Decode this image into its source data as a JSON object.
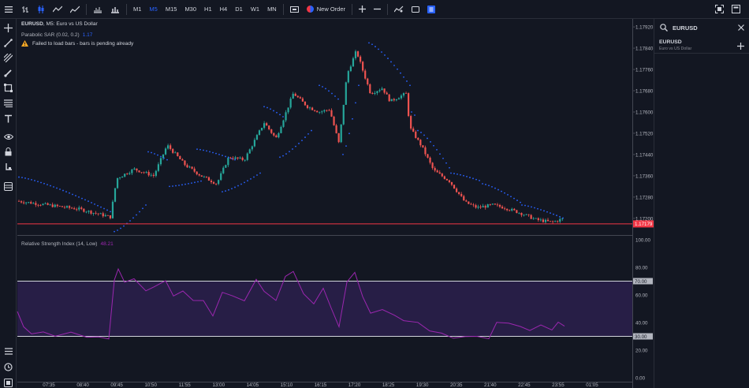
{
  "top_toolbar": {
    "timeframes": [
      "M1",
      "M5",
      "M15",
      "M30",
      "H1",
      "H4",
      "D1",
      "W1",
      "MN"
    ],
    "active_timeframe": "M5",
    "new_order_label": "New Order"
  },
  "chart": {
    "symbol": "EURUSD",
    "title_rest": ", M5: Euro vs US Dollar",
    "sar_label": "Parabolic SAR (0.02, 0.2)",
    "sar_value": "1.17",
    "warning": "Failed to load bars - bars is pending already",
    "rsi_label": "Relative Strength Index (14, Low)",
    "rsi_value": "48.21",
    "current_price": "1.17179",
    "price_axis_labels": [
      "1.17920",
      "1.17840",
      "1.17760",
      "1.17680",
      "1.17600",
      "1.17520",
      "1.17440",
      "1.17360",
      "1.17280",
      "1.17200"
    ],
    "rsi_axis_labels": [
      "100.00",
      "80.00",
      "70.00",
      "60.00",
      "40.00",
      "30.00",
      "20.00",
      "0.00"
    ],
    "time_labels": [
      "07:35",
      "08:40",
      "09:45",
      "10:50",
      "11:55",
      "13:00",
      "14:05",
      "15:10",
      "16:15",
      "17:20",
      "18:25",
      "19:30",
      "20:35",
      "21:40",
      "22:45",
      "23:55",
      "01:05"
    ],
    "colors": {
      "up": "#26a69a",
      "down": "#ef5350",
      "sar": "#2962ff",
      "rsi": "#9c27b0",
      "price_line": "#f23645",
      "rsi_band": "#2a1f4a"
    }
  },
  "watchlist": {
    "search_value": "EURUSD",
    "symbol": "EURUSD",
    "description": "Euro vs US Dollar"
  },
  "icons": {
    "left": [
      "crosshair-icon",
      "trendline-icon",
      "fib-icon",
      "brush-icon",
      "shapes-icon",
      "pattern-icon",
      "text-icon",
      "eye-icon",
      "lock-icon",
      "anchor-icon",
      "layers-icon"
    ],
    "bottom_left": [
      "list-icon",
      "history-icon",
      "screenshot-icon"
    ]
  }
}
